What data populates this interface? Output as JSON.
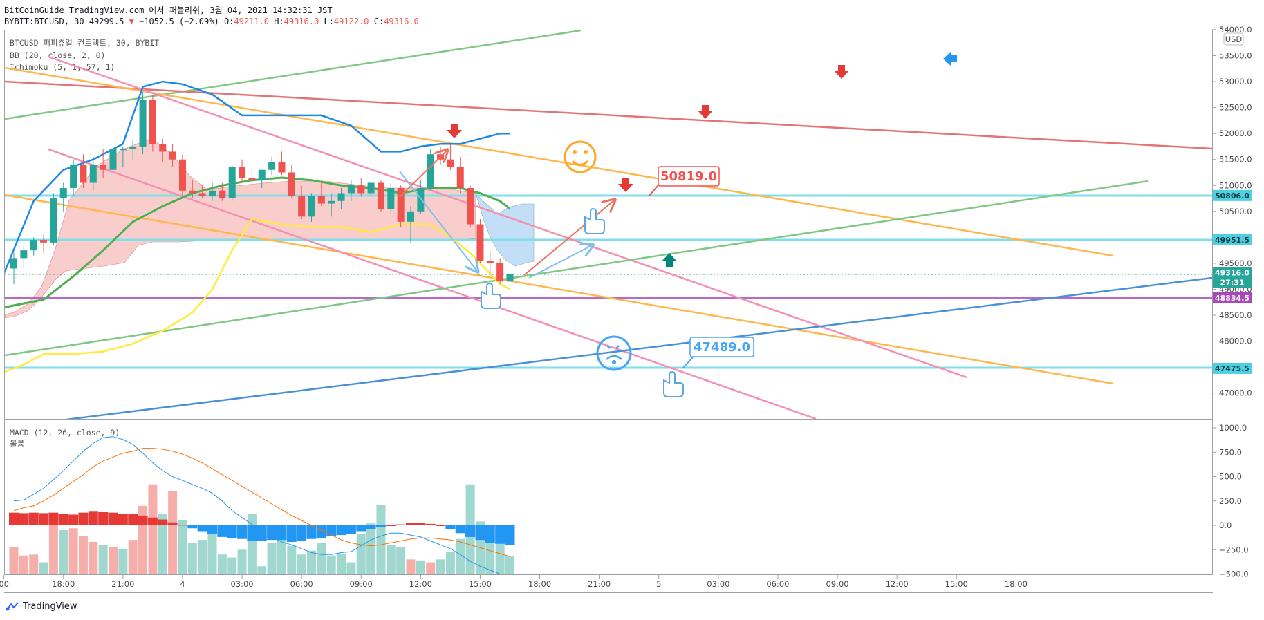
{
  "header": {
    "line1": "BitCoinGuide TradingView.com 에서 퍼블리쉬, 3월 04, 2021 14:32:31 JST",
    "symbol": "BYBIT:BTCUSD, 30",
    "last": "49299.5",
    "change": "−1052.5 (−2.09%)",
    "o_label": "O:",
    "o_value": "49211.0",
    "h_label": "H:",
    "h_value": "49316.0",
    "l_label": "L:",
    "l_value": "49122.0",
    "c_label": "C:",
    "c_value": "49316.0"
  },
  "legend": {
    "title": "BTCUSD 퍼피츄얼 컨트랙트, 30, BYBIT",
    "bb": "BB (20, close, 2, 0)",
    "ichimoku": "Ichimoku (5, 1, 57, 1)",
    "macd": "MACD (12, 26, close, 9)",
    "volume": "볼륨"
  },
  "currency": "USD",
  "price_axis": [
    "54000.0",
    "53500.0",
    "53000.0",
    "52500.0",
    "52000.0",
    "51500.0",
    "51000.0",
    "50500.0",
    "50000.0",
    "49500.0",
    "49000.0",
    "48500.0",
    "48000.0",
    "47500.0",
    "47000.0"
  ],
  "macd_axis": [
    "1000.0",
    "750.0",
    "500.0",
    "250.0",
    "0.0",
    "−250.0",
    "−500.0"
  ],
  "time_axis": [
    {
      "label": "00",
      "idx": -1
    },
    {
      "label": "18:00",
      "idx": 5
    },
    {
      "label": "21:00",
      "idx": 11
    },
    {
      "label": "4",
      "idx": 17
    },
    {
      "label": "03:00",
      "idx": 23
    },
    {
      "label": "06:00",
      "idx": 29
    },
    {
      "label": "09:00",
      "idx": 35
    },
    {
      "label": "12:00",
      "idx": 41
    },
    {
      "label": "15:00",
      "idx": 47
    },
    {
      "label": "18:00",
      "idx": 53
    },
    {
      "label": "21:00",
      "idx": 59
    },
    {
      "label": "5",
      "idx": 65
    },
    {
      "label": "03:00",
      "idx": 71
    },
    {
      "label": "06:00",
      "idx": 77
    },
    {
      "label": "09:00",
      "idx": 83
    },
    {
      "label": "12:00",
      "idx": 89
    },
    {
      "label": "15:00",
      "idx": 95
    },
    {
      "label": "18:00",
      "idx": 101
    }
  ],
  "price_tags": [
    {
      "text": "50806.0",
      "price": 50806,
      "color": "#4dd0e1"
    },
    {
      "text": "49951.5",
      "price": 49951.5,
      "color": "#4dd0e1"
    },
    {
      "text": "49316.0",
      "price": 49316,
      "color": "#26a69a"
    },
    {
      "text": "27:31",
      "price": 49130,
      "color": "#26a69a"
    },
    {
      "text": "48834.5",
      "price": 48834.5,
      "color": "#ab47bc"
    },
    {
      "text": "47475.5",
      "price": 47475.5,
      "color": "#4dd0e1"
    }
  ],
  "callouts": [
    {
      "text": "50819.0",
      "price": 50819,
      "color": "#ef5350"
    },
    {
      "text": "47489.0",
      "price": 47489,
      "color": "#42a5f5"
    }
  ],
  "footer": {
    "brand": "TradingView"
  },
  "chart_data": [
    {
      "type": "candlestick",
      "title": "BTCUSD 퍼피츄얼 컨트랙트, 30, BYBIT",
      "ylim": [
        46600,
        54100
      ],
      "x_unit": "30-minute bars, 3 Mar 2021 ~15:30 to 4 Mar 2021 14:30 JST",
      "ohlc": [
        [
          49400,
          49700,
          49100,
          49600
        ],
        [
          49600,
          49850,
          49400,
          49750
        ],
        [
          49750,
          50000,
          49650,
          49950
        ],
        [
          49950,
          50050,
          49700,
          49900
        ],
        [
          49900,
          50850,
          49850,
          50750
        ],
        [
          50750,
          51050,
          50500,
          50950
        ],
        [
          50950,
          51500,
          50800,
          51400
        ],
        [
          51400,
          51600,
          50950,
          51050
        ],
        [
          51050,
          51550,
          50900,
          51400
        ],
        [
          51400,
          51700,
          51150,
          51300
        ],
        [
          51300,
          51800,
          51200,
          51700
        ],
        [
          51700,
          51750,
          51350,
          51700
        ],
        [
          51700,
          51900,
          51500,
          51750
        ],
        [
          51750,
          52800,
          51600,
          52650
        ],
        [
          52650,
          52750,
          51650,
          51800
        ],
        [
          51800,
          51900,
          51450,
          51650
        ],
        [
          51650,
          51800,
          51350,
          51500
        ],
        [
          51500,
          51600,
          50800,
          50900
        ],
        [
          50900,
          51100,
          50750,
          50850
        ],
        [
          50850,
          51000,
          50750,
          50800
        ],
        [
          50800,
          51050,
          50700,
          50900
        ],
        [
          50900,
          51050,
          50700,
          50750
        ],
        [
          50750,
          51400,
          50700,
          51350
        ],
        [
          51350,
          51500,
          51050,
          51150
        ],
        [
          51150,
          51350,
          51000,
          51100
        ],
        [
          51100,
          51300,
          50950,
          51300
        ],
        [
          51300,
          51550,
          51200,
          51450
        ],
        [
          51450,
          51650,
          51200,
          51250
        ],
        [
          51250,
          51400,
          50750,
          50800
        ],
        [
          50800,
          51000,
          50350,
          50400
        ],
        [
          50400,
          50850,
          50300,
          50800
        ],
        [
          50800,
          51050,
          50600,
          50650
        ],
        [
          50650,
          50850,
          50400,
          50700
        ],
        [
          50700,
          50950,
          50550,
          50850
        ],
        [
          50850,
          51100,
          50700,
          51000
        ],
        [
          51000,
          51150,
          50800,
          50850
        ],
        [
          50850,
          51050,
          50800,
          51050
        ],
        [
          51050,
          51100,
          50500,
          50550
        ],
        [
          50550,
          51050,
          50450,
          50950
        ],
        [
          50950,
          51000,
          50200,
          50300
        ],
        [
          50300,
          50600,
          49900,
          50500
        ],
        [
          50500,
          51100,
          50450,
          50950
        ],
        [
          50950,
          51700,
          50900,
          51600
        ],
        [
          51600,
          51750,
          51400,
          51500
        ],
        [
          51500,
          51800,
          51300,
          51350
        ],
        [
          51350,
          51550,
          50850,
          50950
        ],
        [
          50950,
          51000,
          50200,
          50250
        ],
        [
          50250,
          50350,
          49500,
          49550
        ],
        [
          49550,
          49750,
          49300,
          49500
        ],
        [
          49500,
          49600,
          49100,
          49150
        ],
        [
          49150,
          49400,
          49100,
          49300
        ]
      ]
    },
    {
      "type": "line",
      "title": "BB (20, close, 2, 0) upper band (approx.)",
      "x_index": [
        -1,
        2,
        5,
        8,
        11,
        13,
        15,
        17,
        20,
        23,
        25,
        28,
        31,
        34,
        37,
        39,
        41,
        43,
        45,
        47,
        49,
        50
      ],
      "y": [
        49300,
        50700,
        51300,
        51500,
        51800,
        52900,
        53000,
        52950,
        52750,
        52350,
        52350,
        52350,
        52350,
        52150,
        51650,
        51650,
        51750,
        51800,
        51800,
        51900,
        52000,
        52000
      ]
    },
    {
      "type": "line",
      "title": "Ichimoku conversion line (approx.)",
      "x_index": [
        -1,
        3,
        6,
        9,
        12,
        15,
        18,
        21,
        24,
        27,
        30,
        33,
        36,
        39,
        42,
        45,
        47,
        49,
        50
      ],
      "y": [
        48650,
        48800,
        49250,
        49750,
        50300,
        50600,
        50850,
        51000,
        51100,
        51150,
        51100,
        51000,
        50950,
        50850,
        50950,
        50950,
        50850,
        50700,
        50550
      ]
    },
    {
      "type": "line",
      "title": "Ichimoku lagging line (approx.)",
      "x_index": [
        -1,
        1,
        3,
        6,
        9,
        12,
        15,
        18,
        20,
        22,
        24,
        27,
        30,
        33,
        36,
        39,
        42,
        44,
        46,
        48,
        49,
        50
      ],
      "y": [
        47400,
        47550,
        47750,
        47750,
        47800,
        47950,
        48200,
        48550,
        49000,
        49750,
        50350,
        50250,
        50200,
        50200,
        50100,
        50250,
        50250,
        50000,
        49700,
        49300,
        49100,
        49000
      ]
    },
    {
      "type": "bar",
      "title": "MACD (12, 26, close, 9)",
      "ylim": [
        -500,
        1000
      ],
      "volume": [
        280,
        190,
        200,
        120,
        560,
        450,
        470,
        390,
        330,
        300,
        280,
        260,
        350,
        700,
        920,
        620,
        850,
        550,
        320,
        350,
        440,
        200,
        170,
        250,
        620,
        80,
        320,
        370,
        290,
        200,
        240,
        320,
        190,
        210,
        120,
        410,
        520,
        710,
        300,
        280,
        150,
        140,
        120,
        150,
        230,
        360,
        920,
        540,
        460,
        310,
        180
      ],
      "histogram": [
        130,
        125,
        130,
        125,
        130,
        120,
        110,
        130,
        140,
        135,
        130,
        120,
        120,
        100,
        80,
        60,
        30,
        5,
        -30,
        -60,
        -90,
        -120,
        -130,
        -140,
        -160,
        -160,
        -150,
        -150,
        -170,
        -160,
        -140,
        -130,
        -110,
        -100,
        -90,
        -60,
        -40,
        -20,
        0,
        10,
        25,
        25,
        15,
        0,
        -40,
        -80,
        -120,
        -150,
        -180,
        -190,
        -200
      ],
      "macd": [
        250,
        260,
        320,
        380,
        470,
        560,
        660,
        760,
        840,
        900,
        910,
        880,
        830,
        740,
        640,
        560,
        500,
        460,
        420,
        380,
        330,
        250,
        150,
        80,
        10,
        -60,
        -120,
        -170,
        -200,
        -240,
        -280,
        -300,
        -300,
        -280,
        -270,
        -210,
        -150,
        -110,
        -80,
        -80,
        -100,
        -120,
        -160,
        -200,
        -240,
        -300,
        -370,
        -420,
        -460,
        -500,
        -500
      ],
      "signal": [
        150,
        180,
        200,
        250,
        310,
        380,
        450,
        520,
        600,
        660,
        700,
        740,
        760,
        790,
        790,
        780,
        760,
        730,
        690,
        640,
        580,
        520,
        460,
        400,
        340,
        280,
        220,
        160,
        100,
        50,
        0,
        -50,
        -100,
        -150,
        -180,
        -200,
        -210,
        -200,
        -180,
        -160,
        -140,
        -130,
        -130,
        -140,
        -150,
        -170,
        -200,
        -230,
        -260,
        -290,
        -320
      ]
    }
  ]
}
